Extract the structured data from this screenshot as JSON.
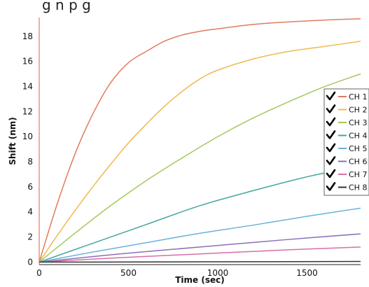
{
  "chart_data": {
    "type": "line",
    "top_clipped_text": "g        n          p      g",
    "xlabel": "Time (sec)",
    "ylabel": "Shift (nm)",
    "xlim": [
      0,
      1800
    ],
    "ylim": [
      -0.2,
      19.5
    ],
    "x_ticks": [
      0,
      500,
      1000,
      1500
    ],
    "y_ticks": [
      0,
      2,
      4,
      6,
      8,
      10,
      12,
      14,
      16,
      18
    ],
    "grid": true,
    "legend_position": "right",
    "series": [
      {
        "name": "CH 1",
        "color": "#e07b5f",
        "checked": true,
        "points": [
          [
            0,
            0
          ],
          [
            100,
            4.6
          ],
          [
            200,
            8.6
          ],
          [
            300,
            11.8
          ],
          [
            400,
            14.3
          ],
          [
            500,
            15.9
          ],
          [
            600,
            16.8
          ],
          [
            700,
            17.6
          ],
          [
            800,
            18.1
          ],
          [
            900,
            18.4
          ],
          [
            1000,
            18.6
          ],
          [
            1200,
            18.95
          ],
          [
            1400,
            19.15
          ],
          [
            1600,
            19.3
          ],
          [
            1800,
            19.4
          ]
        ]
      },
      {
        "name": "CH 2",
        "color": "#f0b94f",
        "checked": true,
        "points": [
          [
            0,
            0
          ],
          [
            100,
            2.1
          ],
          [
            200,
            4.1
          ],
          [
            300,
            6.0
          ],
          [
            400,
            7.8
          ],
          [
            500,
            9.5
          ],
          [
            600,
            11.0
          ],
          [
            700,
            12.4
          ],
          [
            800,
            13.6
          ],
          [
            900,
            14.6
          ],
          [
            1000,
            15.3
          ],
          [
            1200,
            16.2
          ],
          [
            1400,
            16.8
          ],
          [
            1600,
            17.2
          ],
          [
            1800,
            17.6
          ]
        ]
      },
      {
        "name": "CH 3",
        "color": "#a4c95c",
        "checked": true,
        "points": [
          [
            0,
            0
          ],
          [
            200,
            2.3
          ],
          [
            400,
            4.5
          ],
          [
            600,
            6.5
          ],
          [
            800,
            8.3
          ],
          [
            1000,
            10.0
          ],
          [
            1200,
            11.5
          ],
          [
            1400,
            12.8
          ],
          [
            1600,
            14.0
          ],
          [
            1800,
            15.0
          ]
        ]
      },
      {
        "name": "CH 4",
        "color": "#45a6a0",
        "checked": true,
        "points": [
          [
            0,
            0
          ],
          [
            300,
            1.5
          ],
          [
            600,
            3.0
          ],
          [
            900,
            4.5
          ],
          [
            1200,
            5.7
          ],
          [
            1500,
            6.8
          ],
          [
            1800,
            7.7
          ]
        ]
      },
      {
        "name": "CH 5",
        "color": "#6ab3d8",
        "checked": true,
        "points": [
          [
            0,
            0
          ],
          [
            300,
            0.8
          ],
          [
            600,
            1.55
          ],
          [
            900,
            2.3
          ],
          [
            1200,
            2.95
          ],
          [
            1500,
            3.65
          ],
          [
            1800,
            4.3
          ]
        ]
      },
      {
        "name": "CH 6",
        "color": "#8b70b8",
        "checked": true,
        "points": [
          [
            0,
            0
          ],
          [
            450,
            0.65
          ],
          [
            900,
            1.2
          ],
          [
            1350,
            1.75
          ],
          [
            1800,
            2.25
          ]
        ]
      },
      {
        "name": "CH 7",
        "color": "#d76fa6",
        "checked": true,
        "points": [
          [
            0,
            0
          ],
          [
            450,
            0.35
          ],
          [
            900,
            0.65
          ],
          [
            1350,
            0.95
          ],
          [
            1800,
            1.2
          ]
        ]
      },
      {
        "name": "CH 8",
        "color": "#333333",
        "checked": true,
        "points": [
          [
            0,
            0
          ],
          [
            900,
            0.02
          ],
          [
            1800,
            0.05
          ]
        ]
      }
    ]
  }
}
